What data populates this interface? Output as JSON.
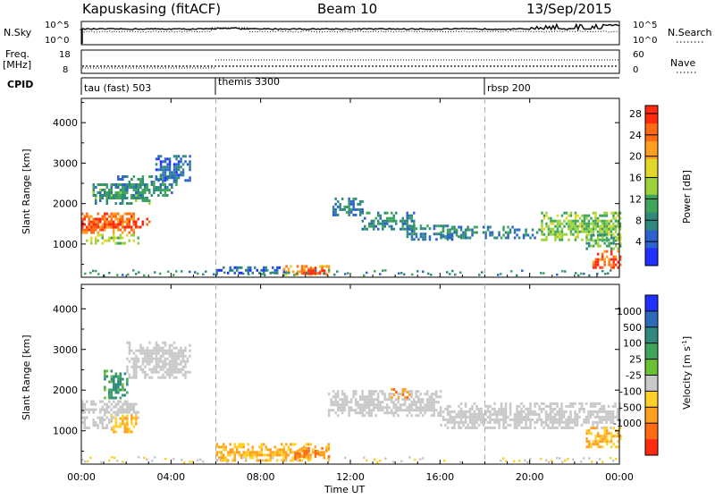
{
  "header": {
    "station": "Kapuskasing (fitACF)",
    "beam": "Beam 10",
    "date": "13/Sep/2015"
  },
  "noise_panel": {
    "left_label": "N.Sky",
    "left_ticks": [
      "10^5",
      "10^0"
    ],
    "right_label": "N.Search",
    "right_ticks": [
      "10^5",
      "10^0"
    ]
  },
  "freq_panel": {
    "left_label_1": "Freq.",
    "left_label_2": "[MHz]",
    "left_ticks": [
      "18",
      "8"
    ],
    "right_label": "Nave",
    "right_ticks": [
      "60",
      "0"
    ]
  },
  "cpid": {
    "label": "CPID",
    "segments": [
      {
        "text": "tau (fast) 503",
        "start_hour": 0
      },
      {
        "text": "themis 3300",
        "start_hour": 6
      },
      {
        "text": "rbsp 200",
        "start_hour": 18
      }
    ]
  },
  "x_axis": {
    "label": "Time UT",
    "ticks": [
      "00:00",
      "04:00",
      "08:00",
      "12:00",
      "16:00",
      "20:00",
      "00:00"
    ],
    "range_hours": [
      0,
      24
    ]
  },
  "y_axis": {
    "label": "Slant Range [km]",
    "ticks": [
      "1000",
      "2000",
      "3000",
      "4000"
    ],
    "range_km": [
      180,
      4600
    ]
  },
  "power_colorbar": {
    "label": "Power [dB]",
    "ticks": [
      "4",
      "8",
      "12",
      "16",
      "20",
      "24",
      "28"
    ],
    "colors": [
      "#1f30ff",
      "#2b62cc",
      "#2f8a7d",
      "#3ea55a",
      "#9bd23a",
      "#e2d82c",
      "#ffa020",
      "#ff6a14",
      "#ff2a10"
    ]
  },
  "velocity_colorbar": {
    "label": "Velocity [m s^-1]",
    "ticks": [
      "1000",
      "500",
      "100",
      "25",
      "-25",
      "-100",
      "-500",
      "-1000"
    ],
    "colors": [
      "#1f30ff",
      "#2f6ab8",
      "#2f8a7d",
      "#3ea55a",
      "#69c234",
      "#c8c8c8",
      "#ffd02a",
      "#ffa020",
      "#ff6a14",
      "#ff2a10"
    ]
  },
  "chart_data": [
    {
      "type": "heatmap",
      "quantity": "power",
      "title": "Beam 10",
      "xlabel": "Time UT",
      "ylabel": "Slant Range [km]",
      "unit": "dB",
      "xlim": [
        0,
        24
      ],
      "ylim": [
        180,
        4600
      ],
      "clim": [
        0,
        30
      ],
      "regions": [
        {
          "t": [
            0.0,
            2.3
          ],
          "r": [
            1280,
            1780
          ],
          "value": 24
        },
        {
          "t": [
            0.0,
            3.0
          ],
          "r": [
            1450,
            1650
          ],
          "value": 28
        },
        {
          "t": [
            0.1,
            2.5
          ],
          "r": [
            1000,
            1250
          ],
          "value": 16
        },
        {
          "t": [
            0.5,
            3.0
          ],
          "r": [
            1980,
            2500
          ],
          "value": 10
        },
        {
          "t": [
            1.5,
            4.2
          ],
          "r": [
            2200,
            2700
          ],
          "value": 9
        },
        {
          "t": [
            3.3,
            4.8
          ],
          "r": [
            2600,
            3200
          ],
          "value": 6
        },
        {
          "t": [
            6.0,
            9.0
          ],
          "r": [
            280,
            450
          ],
          "value": 6
        },
        {
          "t": [
            9.0,
            11.0
          ],
          "r": [
            250,
            480
          ],
          "value": 22
        },
        {
          "t": [
            9.7,
            10.8
          ],
          "r": [
            300,
            440
          ],
          "value": 28
        },
        {
          "t": [
            11.2,
            12.5
          ],
          "r": [
            1700,
            2150
          ],
          "value": 7
        },
        {
          "t": [
            12.5,
            14.8
          ],
          "r": [
            1380,
            1800
          ],
          "value": 8
        },
        {
          "t": [
            14.5,
            16.8
          ],
          "r": [
            1100,
            1480
          ],
          "value": 7
        },
        {
          "t": [
            16.0,
            20.5
          ],
          "r": [
            1150,
            1450
          ],
          "value": 8
        },
        {
          "t": [
            20.5,
            24.0
          ],
          "r": [
            1100,
            1800
          ],
          "value": 14
        },
        {
          "t": [
            22.5,
            24.0
          ],
          "r": [
            900,
            1250
          ],
          "value": 12
        },
        {
          "t": [
            22.8,
            24.0
          ],
          "r": [
            420,
            850
          ],
          "value": 26
        }
      ]
    },
    {
      "type": "heatmap",
      "quantity": "velocity",
      "xlabel": "Time UT",
      "ylabel": "Slant Range [km]",
      "unit": "m s^-1",
      "xlim": [
        0,
        24
      ],
      "ylim": [
        180,
        4600
      ],
      "clim": [
        -1000,
        1000
      ],
      "regions": [
        {
          "t": [
            0.0,
            2.5
          ],
          "r": [
            1350,
            1750
          ],
          "value": 0
        },
        {
          "t": [
            1.3,
            2.4
          ],
          "r": [
            1000,
            1400
          ],
          "value": -100
        },
        {
          "t": [
            1.0,
            2.0
          ],
          "r": [
            1800,
            2500
          ],
          "value": 100
        },
        {
          "t": [
            0.0,
            1.3
          ],
          "r": [
            1050,
            1300
          ],
          "value": 0
        },
        {
          "t": [
            2.0,
            4.8
          ],
          "r": [
            2300,
            3200
          ],
          "value": 0
        },
        {
          "t": [
            6.0,
            11.0
          ],
          "r": [
            250,
            700
          ],
          "value": -100
        },
        {
          "t": [
            9.5,
            11.0
          ],
          "r": [
            300,
            600
          ],
          "value": -500
        },
        {
          "t": [
            11.0,
            16.0
          ],
          "r": [
            1400,
            2000
          ],
          "value": 0
        },
        {
          "t": [
            13.8,
            14.6
          ],
          "r": [
            1850,
            2050
          ],
          "value": -500
        },
        {
          "t": [
            16.0,
            24.0
          ],
          "r": [
            1100,
            1700
          ],
          "value": 0
        },
        {
          "t": [
            22.5,
            24.0
          ],
          "r": [
            600,
            1100
          ],
          "value": -100
        }
      ]
    }
  ]
}
